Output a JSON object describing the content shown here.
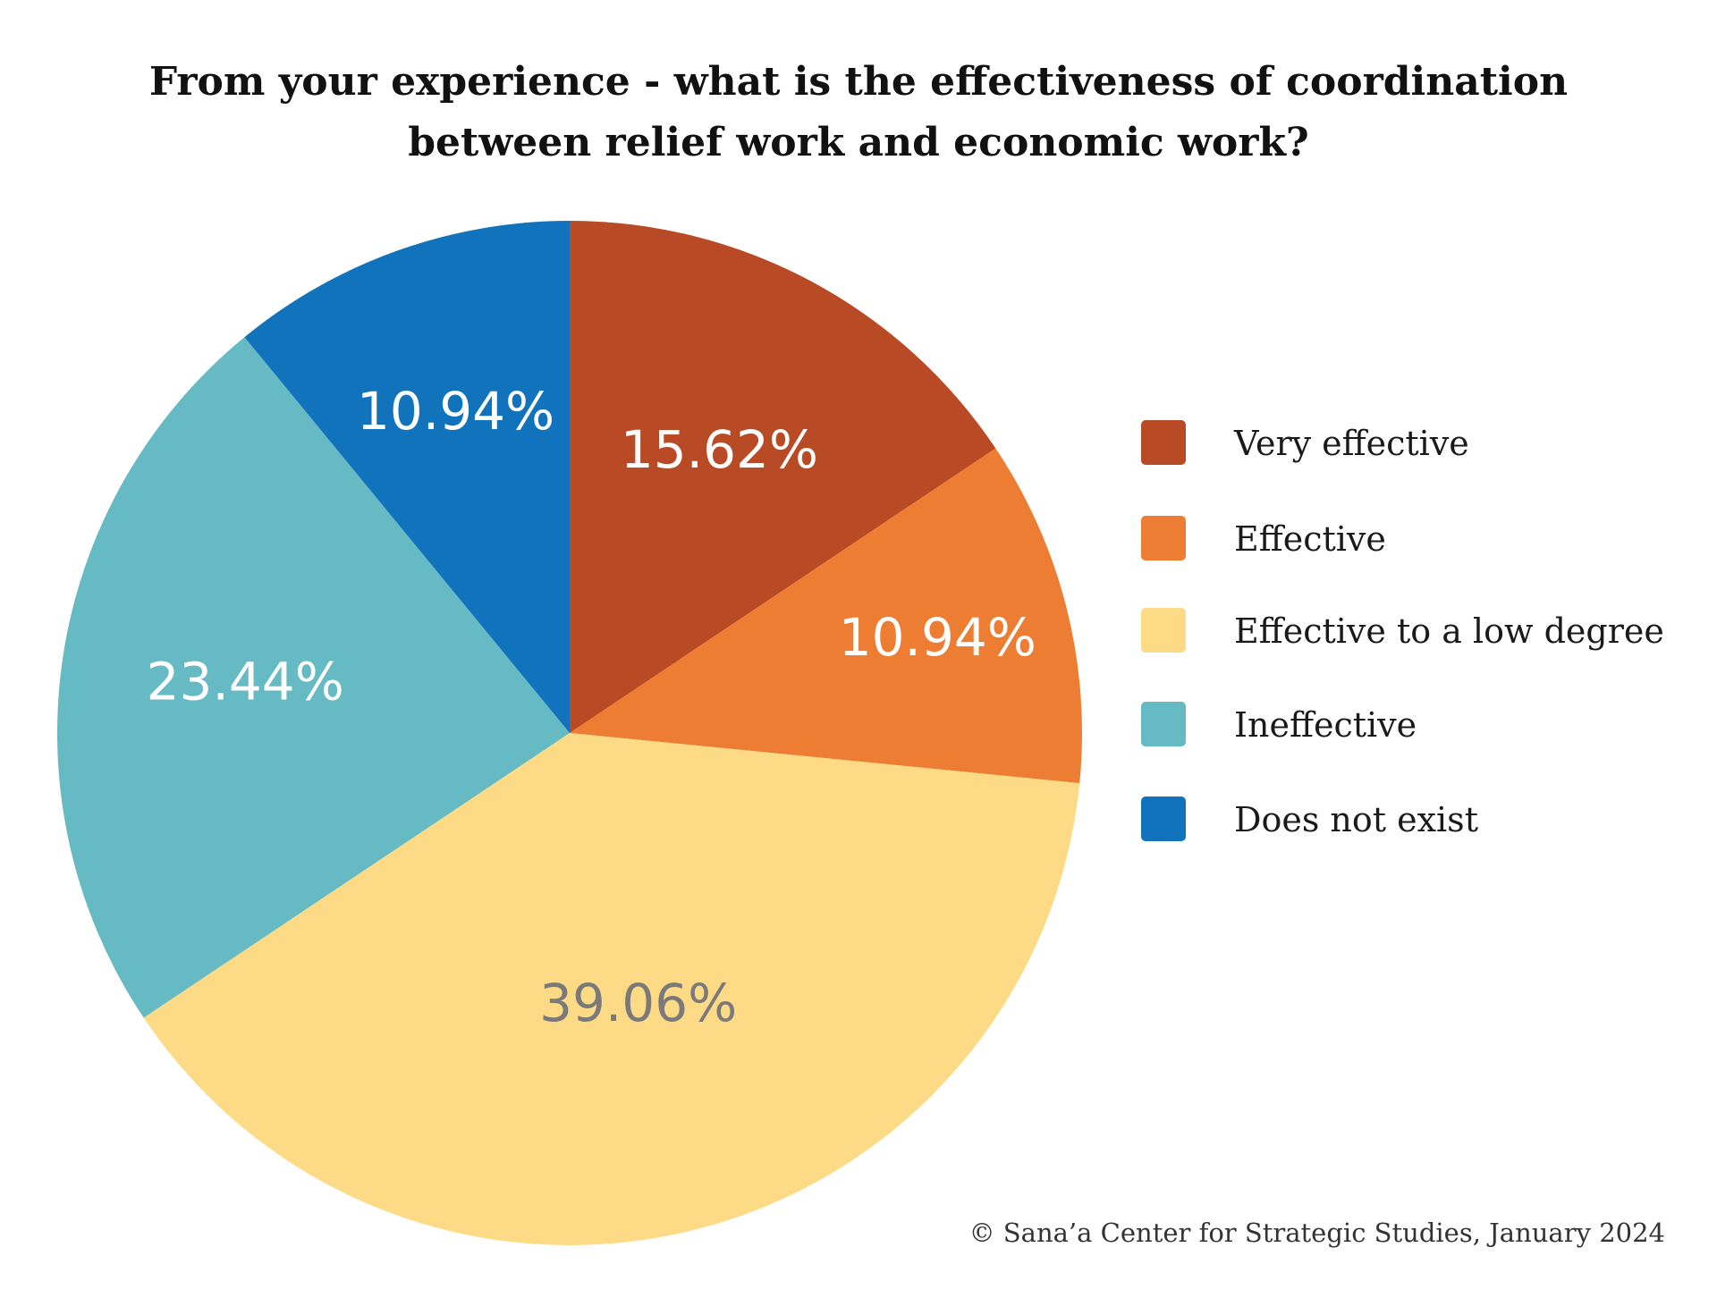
{
  "chart_data": {
    "type": "pie",
    "title_lines": [
      "From your experience - what is the effectiveness of coordination",
      "between relief work and economic work?"
    ],
    "slices": [
      {
        "label": "Very effective",
        "value": 15.62,
        "value_label": "15.62%",
        "color": "#b84a26",
        "label_color": "#ffffff"
      },
      {
        "label": "Effective",
        "value": 10.94,
        "value_label": "10.94%",
        "color": "#ec7d33",
        "label_color": "#ffffff"
      },
      {
        "label": "Effective to a low degree",
        "value": 39.06,
        "value_label": "39.06%",
        "color": "#fdda86",
        "label_color": "#7a7a7a"
      },
      {
        "label": "Ineffective",
        "value": 23.44,
        "value_label": "23.44%",
        "color": "#65bac3",
        "label_color": "#ffffff"
      },
      {
        "label": "Does not exist",
        "value": 10.94,
        "value_label": "10.94%",
        "color": "#1173bb",
        "label_color": "#ffffff"
      }
    ],
    "start_angle": "12 o'clock",
    "direction": "clockwise",
    "legend_position": "right"
  },
  "source": "© Sana’a Center for Strategic Studies, January 2024"
}
